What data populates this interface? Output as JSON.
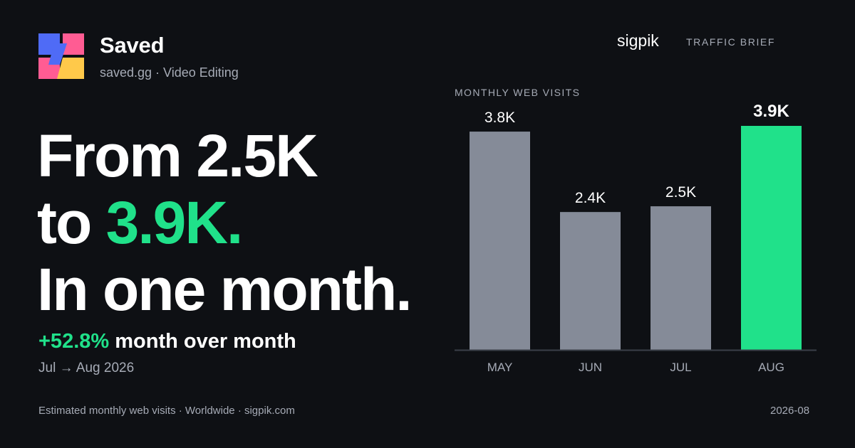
{
  "brand": {
    "name": "Saved",
    "subtitle": "saved.gg · Video Editing",
    "logo_colors": [
      "#4f6bf6",
      "#ff5c93",
      "#ffc94a"
    ]
  },
  "header": {
    "publisher": "sigpik",
    "tag": "TRAFFIC BRIEF"
  },
  "headline": {
    "line1": "From 2.5K",
    "line2_prefix": "to ",
    "line2_accent": "3.9K.",
    "line3": "In one month."
  },
  "summary": {
    "change_pct": "+52.8%",
    "change_text": " month over month",
    "period": "Jul → Aug 2026"
  },
  "footer": {
    "source": "Estimated monthly web visits · Worldwide · sigpik.com",
    "date": "2026-08"
  },
  "colors": {
    "background": "#0e1014",
    "accent": "#20e18a",
    "bar_default": "#858b98",
    "muted_text": "#a6abb6"
  },
  "chart_data": {
    "type": "bar",
    "title": "MONTHLY WEB VISITS",
    "categories": [
      "MAY",
      "JUN",
      "JUL",
      "AUG"
    ],
    "values": [
      3800,
      2400,
      2500,
      3900
    ],
    "value_labels": [
      "3.8K",
      "2.4K",
      "2.5K",
      "3.9K"
    ],
    "highlight_index": 3,
    "ylim": [
      0,
      3900
    ],
    "grid": false,
    "legend": "none"
  }
}
